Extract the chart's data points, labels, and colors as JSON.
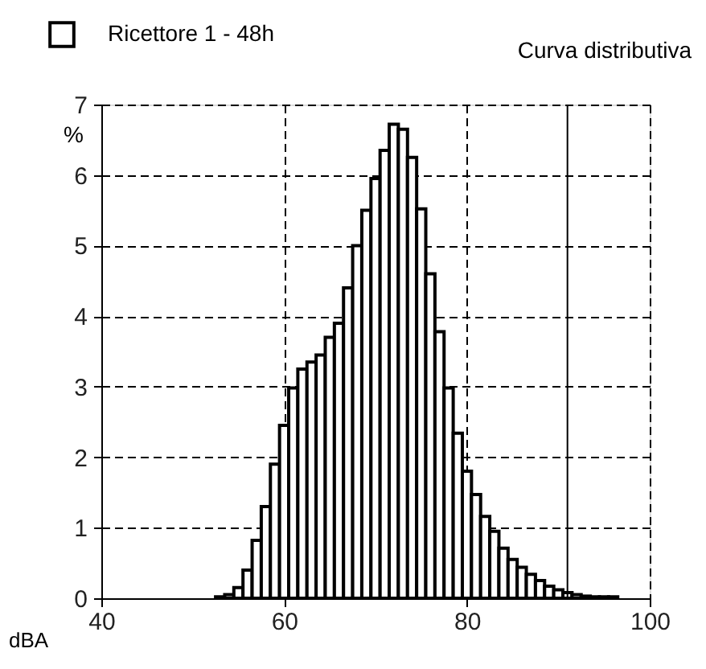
{
  "chart_data": {
    "type": "histogram",
    "title": "Curva distributiva",
    "xlabel": "dBA",
    "ylabel": "%",
    "bins": [
      52.5,
      53.5,
      54.5,
      55.5,
      56.5,
      57.5,
      58.5,
      59.5,
      60.5,
      61.5,
      62.5,
      63.5,
      64.5,
      65.5,
      66.5,
      67.5,
      68.5,
      69.5,
      70.5,
      71.5,
      72.5,
      73.5,
      74.5,
      75.5,
      76.5,
      77.5,
      78.5,
      79.5,
      80.5,
      81.5,
      82.5,
      83.5,
      84.5,
      85.5,
      86.5,
      87.5,
      88.5,
      89.5,
      90.5,
      91.5,
      92.5,
      93.5,
      94.5,
      95.5,
      96.5
    ],
    "series": [
      {
        "name": "Ricettore 1 - 48h",
        "color": "#ffffff",
        "values": [
          0.02,
          0.05,
          0.15,
          0.4,
          0.82,
          1.3,
          1.9,
          2.45,
          2.98,
          3.25,
          3.35,
          3.45,
          3.7,
          3.9,
          4.4,
          5.0,
          5.5,
          5.95,
          6.35,
          6.72,
          6.65,
          6.25,
          5.52,
          4.6,
          3.78,
          2.98,
          2.34,
          1.8,
          1.47,
          1.16,
          0.95,
          0.71,
          0.55,
          0.44,
          0.34,
          0.25,
          0.17,
          0.12,
          0.08,
          0.05,
          0.03,
          0.02,
          0.02,
          0.02
        ]
      }
    ],
    "xlim": [
      40,
      100
    ],
    "ylim": [
      0,
      7
    ],
    "xticks": [
      40,
      60,
      80,
      100
    ],
    "yticks": [
      0,
      1,
      2,
      3,
      4,
      5,
      6,
      7
    ],
    "ref_lines": [
      {
        "axis": "x",
        "value": 91,
        "color": "#000000",
        "line_style": "solid"
      }
    ],
    "grid": true,
    "legend": "top left",
    "line_style": "dashed"
  }
}
